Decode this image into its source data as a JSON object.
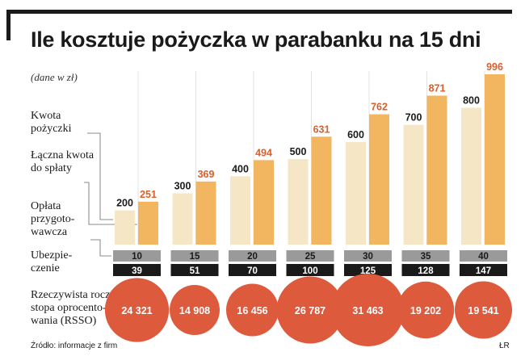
{
  "title": "Ile kosztuje pożyczka w parabanku na 15 dni",
  "unit_note": "(dane w zł)",
  "legend": {
    "loan": "Kwota pożyczki",
    "total": "Łączna kwota do spłaty",
    "fee": "Opłata przygoto-wawcza",
    "insurance": "Ubezpie-czenie",
    "rsso": "Rzeczywista roczna stopa oprocento-wania (RSSO)"
  },
  "source": "Źródło: informacje z firm",
  "author": "ŁR",
  "colors": {
    "loan": "#f5e6c6",
    "total": "#f2b560",
    "total_label": "#d95f2b",
    "fee_box": "#9a9a9a",
    "insurance_box": "#1a1a1a",
    "rsso_circle": "#dd5a3d",
    "gridline": "#dcdcdc",
    "leader": "#666666"
  },
  "chart_data": {
    "type": "bar",
    "title": "Ile kosztuje pożyczka w parabanku na 15 dni",
    "ylabel": "(dane w zł)",
    "categories": [
      "",
      "",
      "",
      "",
      "",
      "",
      ""
    ],
    "series": [
      {
        "name": "Kwota pożyczki",
        "values": [
          200,
          300,
          400,
          500,
          600,
          700,
          800
        ]
      },
      {
        "name": "Łączna kwota do spłaty",
        "values": [
          251,
          369,
          494,
          631,
          762,
          871,
          996
        ]
      }
    ],
    "fee": [
      10,
      15,
      20,
      25,
      30,
      35,
      40
    ],
    "insurance": [
      39,
      51,
      70,
      100,
      125,
      128,
      147
    ],
    "rsso": [
      "24 321",
      "14 908",
      "16 456",
      "26 787",
      "31 463",
      "19 202",
      "19 541"
    ],
    "rsso_values": [
      24321,
      14908,
      16456,
      26787,
      31463,
      19202,
      19541
    ],
    "ylim": [
      0,
      1000
    ],
    "grid": true
  }
}
